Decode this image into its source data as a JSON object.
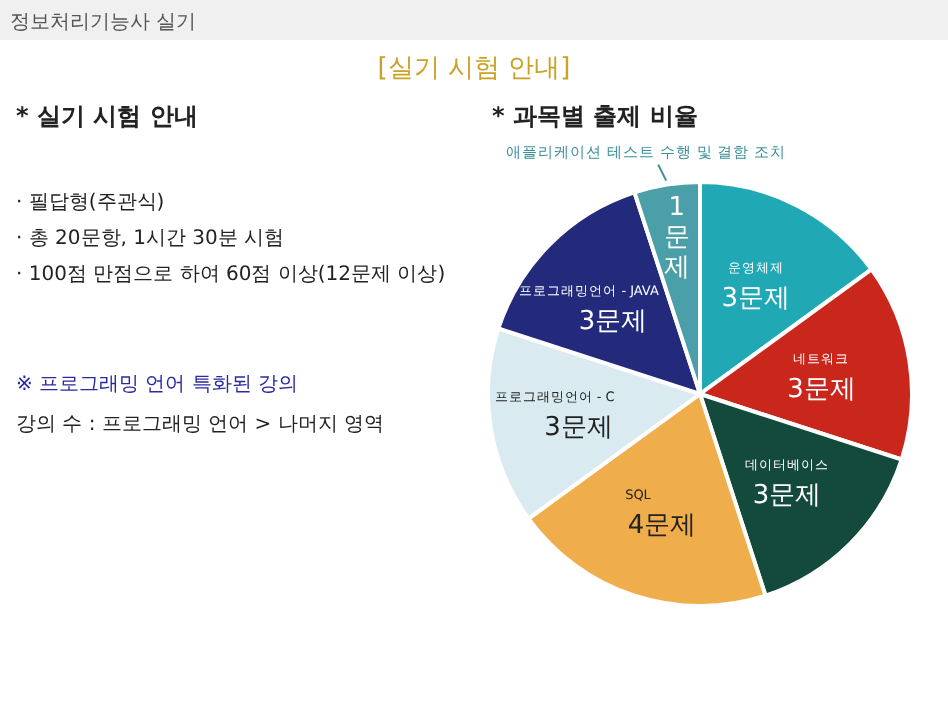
{
  "chart_data": [
    {
      "type": "other",
      "title": "정보처리기능사 실기",
      "subtitle": "[실기 시험 안내]",
      "annotations": [
        "* 실기 시험 안내",
        "· 필답형(주관식)",
        "· 총 20문항, 1시간 30분 시험",
        "· 100점 만점으로 하여 60점 이상(12문제 이상)",
        "※ 프로그래밍 언어 특화된 강의",
        "강의 수 : 프로그래밍 언어 > 나머지 영역"
      ]
    },
    {
      "type": "pie",
      "title": "* 과목별 출제 비율",
      "categories": [
        "운영체제",
        "네트워크",
        "데이터베이스",
        "SQL",
        "프로그래밍언어 - C",
        "프로그래밍언어 - JAVA",
        "애플리케이션 테스트 수행 및 결함 조치"
      ],
      "values": [
        3,
        3,
        3,
        4,
        3,
        3,
        1
      ],
      "colors": [
        "#21a8b5",
        "#c9261c",
        "#144a3b",
        "#f0ad4c",
        "#d9ebf1",
        "#232a7c",
        "#4b9fa8"
      ],
      "value_labels": [
        "3문제",
        "3문제",
        "3문제",
        "4문제",
        "3문제",
        "3문제",
        "1문제"
      ]
    }
  ]
}
